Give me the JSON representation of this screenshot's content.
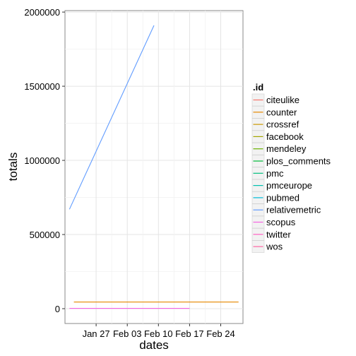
{
  "chart_data": {
    "type": "line",
    "title": "",
    "xlabel": "dates",
    "ylabel": "totals",
    "x_ticks": [
      "Jan 27",
      "Feb 03",
      "Feb 10",
      "Feb 17",
      "Feb 24"
    ],
    "y_ticks": [
      "0",
      "500000",
      "1000000",
      "1500000",
      "2000000"
    ],
    "ylim": [
      -100000,
      2010000
    ],
    "xlim": [
      "2015-01-20",
      "2015-03-01"
    ],
    "x_tick_dates": [
      "2015-01-27",
      "2015-02-03",
      "2015-02-10",
      "2015-02-17",
      "2015-02-24"
    ],
    "grid": true,
    "legend": {
      "title": ".id",
      "placement": "right"
    },
    "series": [
      {
        "name": "citeulike",
        "color": "#F8766D",
        "points": []
      },
      {
        "name": "counter",
        "color": "#E58700",
        "points": [
          [
            "2015-01-22",
            45000
          ],
          [
            "2015-02-28",
            45000
          ]
        ]
      },
      {
        "name": "crossref",
        "color": "#C99800",
        "points": []
      },
      {
        "name": "facebook",
        "color": "#A3A500",
        "points": []
      },
      {
        "name": "mendeley",
        "color": "#6BB100",
        "points": []
      },
      {
        "name": "plos_comments",
        "color": "#00BA38",
        "points": []
      },
      {
        "name": "pmc",
        "color": "#00BF7D",
        "points": []
      },
      {
        "name": "pmceurope",
        "color": "#00C0AF",
        "points": []
      },
      {
        "name": "pubmed",
        "color": "#00BCD8",
        "points": []
      },
      {
        "name": "relativemetric",
        "color": "#619CFF",
        "points": [
          [
            "2015-01-21",
            670000
          ],
          [
            "2015-02-09",
            1910000
          ]
        ]
      },
      {
        "name": "scopus",
        "color": "#F564E3",
        "points": [
          [
            "2015-01-21",
            2000
          ],
          [
            "2015-02-17",
            2000
          ]
        ]
      },
      {
        "name": "twitter",
        "color": "#FF61C3",
        "points": []
      },
      {
        "name": "wos",
        "color": "#FF67A4",
        "points": []
      }
    ]
  }
}
